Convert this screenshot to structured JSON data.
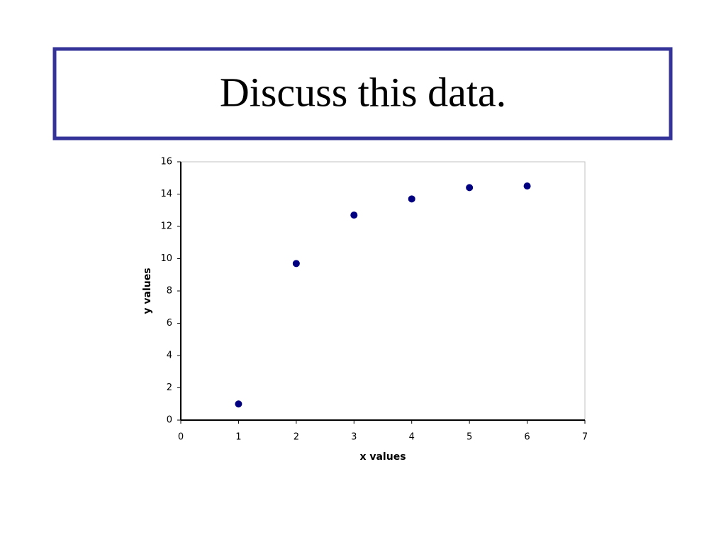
{
  "chart_data": {
    "type": "scatter",
    "title": "Discuss this data.",
    "x_label": "x values",
    "y_label": "y values",
    "x": [
      1,
      2,
      3,
      4,
      5,
      6
    ],
    "values": [
      1,
      9.7,
      12.7,
      13.7,
      14.4,
      14.5
    ],
    "color": "#000080",
    "xlim": [
      0,
      7
    ],
    "xticks": [
      0,
      1,
      2,
      3,
      4,
      5,
      6,
      7
    ],
    "ylim": [
      0,
      16
    ],
    "yticks": [
      0,
      2,
      4,
      6,
      8,
      10,
      12,
      14,
      16
    ],
    "grid": false
  }
}
